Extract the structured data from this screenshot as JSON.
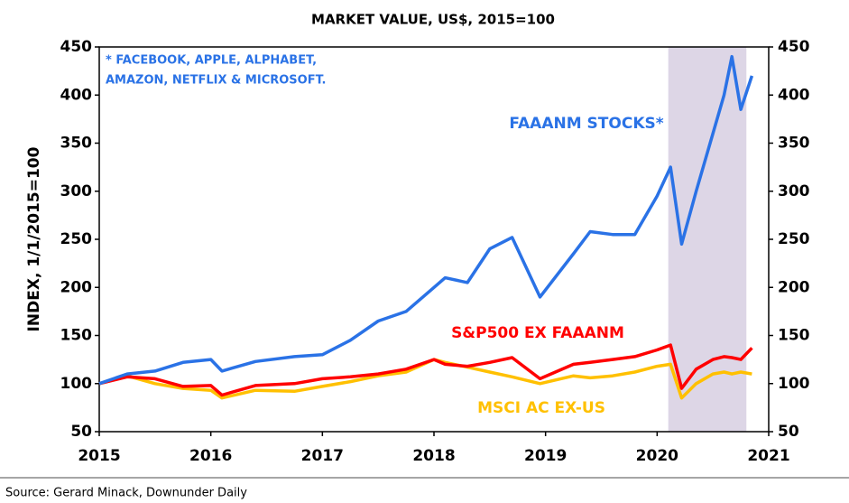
{
  "chart_data": {
    "type": "line",
    "title": "MARKET VALUE, US$, 2015=100",
    "y_label": "INDEX, 1/1/2015=100",
    "note": [
      "* FACEBOOK, APPLE, ALPHABET,",
      "AMAZON, NETFLIX & MICROSOFT."
    ],
    "source": "Source: Gerard Minack, Downunder Daily",
    "x": [
      2015,
      2015.25,
      2015.5,
      2015.75,
      2016,
      2016.1,
      2016.4,
      2016.75,
      2017,
      2017.25,
      2017.5,
      2017.75,
      2018,
      2018.1,
      2018.3,
      2018.5,
      2018.7,
      2018.95,
      2019.25,
      2019.4,
      2019.6,
      2019.8,
      2020,
      2020.12,
      2020.22,
      2020.35,
      2020.5,
      2020.6,
      2020.67,
      2020.75,
      2020.85
    ],
    "series": [
      {
        "name": "FAAANM STOCKS*",
        "color": "#2a72e6",
        "values": [
          100,
          110,
          113,
          122,
          125,
          113,
          123,
          128,
          130,
          145,
          165,
          175,
          200,
          210,
          205,
          240,
          252,
          190,
          235,
          258,
          255,
          255,
          295,
          325,
          245,
          300,
          360,
          400,
          440,
          385,
          420
        ]
      },
      {
        "name": "S&P500 EX FAAANM",
        "color": "#ff0000",
        "values": [
          100,
          107,
          105,
          97,
          98,
          88,
          98,
          100,
          105,
          107,
          110,
          115,
          125,
          120,
          118,
          122,
          127,
          105,
          120,
          122,
          125,
          128,
          135,
          140,
          95,
          115,
          125,
          128,
          127,
          125,
          137
        ]
      },
      {
        "name": "MSCI AC EX-US",
        "color": "#ffc000",
        "values": [
          100,
          108,
          100,
          95,
          93,
          85,
          93,
          92,
          97,
          102,
          108,
          112,
          125,
          122,
          117,
          112,
          107,
          100,
          108,
          106,
          108,
          112,
          118,
          120,
          85,
          100,
          110,
          112,
          110,
          112,
          110
        ]
      }
    ],
    "highlight_x": [
      2020.1,
      2020.8
    ],
    "highlight_color": "#ddd6e6",
    "xlim": [
      2015,
      2021
    ],
    "xticks": [
      2015,
      2016,
      2017,
      2018,
      2019,
      2020,
      2021
    ],
    "ylim": [
      50,
      450
    ],
    "yticks": [
      50,
      100,
      150,
      200,
      250,
      300,
      350,
      400,
      450
    ],
    "y2lim": [
      50,
      450
    ],
    "y2ticks": [
      50,
      100,
      150,
      200,
      250,
      300,
      350,
      400,
      450
    ]
  }
}
